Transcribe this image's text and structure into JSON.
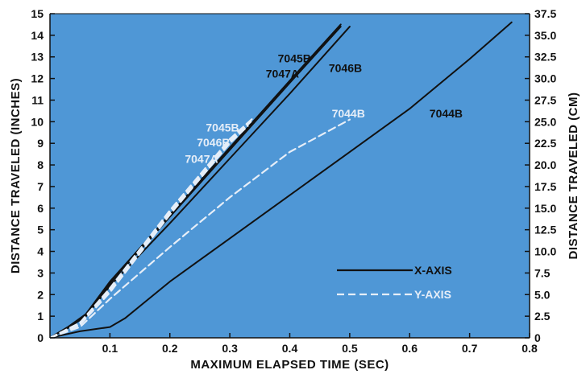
{
  "colors": {
    "plot_background": "#4f97d6",
    "x_axis_series": "#111111",
    "y_axis_series": "#e6eef8"
  },
  "chart_data": {
    "type": "line",
    "title": "",
    "xlabel": "MAXIMUM ELAPSED TIME (SEC)",
    "ylabel": "DISTANCE TRAVELED (INCHES)",
    "y2label": "DISTANCE TRAVELED (CM)",
    "xlim": [
      0,
      0.8
    ],
    "ylim": [
      0,
      15
    ],
    "y2lim": [
      0,
      37.5
    ],
    "x_ticks": [
      "0.1",
      "0.2",
      "0.3",
      "0.4",
      "0.5",
      "0.6",
      "0.7",
      "0.8"
    ],
    "y_ticks": [
      "0",
      "1",
      "2",
      "3",
      "4",
      "5",
      "6",
      "7",
      "8",
      "9",
      "10",
      "11",
      "12",
      "13",
      "14",
      "15"
    ],
    "y2_ticks": [
      "0",
      "2.5",
      "5.0",
      "7.5",
      "10.0",
      "12.5",
      "15.0",
      "17.5",
      "20.0",
      "22.5",
      "25.0",
      "27.5",
      "30.0",
      "32.5",
      "35.0",
      "37.5"
    ],
    "grid": false,
    "legend": {
      "placement": "lower-right",
      "entries": [
        {
          "label": "X-AXIS",
          "style": "solid"
        },
        {
          "label": "Y-AXIS",
          "style": "dashed"
        }
      ]
    },
    "series": [
      {
        "label": "7045B",
        "axis_group": "X-AXIS",
        "style": "solid",
        "x": [
          0,
          0.03,
          0.06,
          0.1,
          0.2,
          0.3,
          0.4,
          0.485
        ],
        "y": [
          0,
          0.5,
          1.1,
          2.6,
          5.7,
          8.8,
          11.9,
          14.5
        ]
      },
      {
        "label": "7046B",
        "axis_group": "X-AXIS",
        "style": "solid",
        "x": [
          0,
          0.03,
          0.06,
          0.1,
          0.2,
          0.3,
          0.4,
          0.5
        ],
        "y": [
          0,
          0.5,
          1.0,
          2.4,
          5.3,
          8.3,
          11.3,
          14.4
        ]
      },
      {
        "label": "7047A",
        "axis_group": "X-AXIS",
        "style": "solid",
        "x": [
          0,
          0.03,
          0.06,
          0.1,
          0.2,
          0.3,
          0.4,
          0.485
        ],
        "y": [
          0,
          0.45,
          1.0,
          2.5,
          5.6,
          8.7,
          11.8,
          14.4
        ]
      },
      {
        "label": "7044B",
        "axis_group": "X-AXIS",
        "style": "solid",
        "x": [
          0,
          0.05,
          0.1,
          0.125,
          0.2,
          0.3,
          0.4,
          0.5,
          0.6,
          0.7,
          0.77
        ],
        "y": [
          0,
          0.3,
          0.5,
          0.9,
          2.6,
          4.6,
          6.6,
          8.6,
          10.6,
          12.9,
          14.6
        ]
      },
      {
        "label": "7045B",
        "axis_group": "Y-AXIS",
        "style": "dashed",
        "x": [
          0,
          0.05,
          0.1,
          0.2,
          0.3,
          0.34
        ],
        "y": [
          0,
          0.7,
          2.3,
          5.9,
          9.2,
          10.2
        ]
      },
      {
        "label": "7046B",
        "axis_group": "Y-AXIS",
        "style": "dashed",
        "x": [
          0,
          0.05,
          0.1,
          0.2,
          0.3,
          0.335
        ],
        "y": [
          0,
          0.65,
          2.2,
          5.8,
          9.1,
          10.0
        ]
      },
      {
        "label": "7047A",
        "axis_group": "Y-AXIS",
        "style": "dashed",
        "x": [
          0,
          0.05,
          0.1,
          0.2,
          0.3,
          0.33
        ],
        "y": [
          0,
          0.6,
          2.1,
          5.7,
          9.0,
          9.8
        ]
      },
      {
        "label": "7044B",
        "axis_group": "Y-AXIS",
        "style": "dashed",
        "x": [
          0,
          0.05,
          0.1,
          0.2,
          0.3,
          0.4,
          0.5
        ],
        "y": [
          0,
          0.5,
          1.8,
          4.2,
          6.5,
          8.6,
          10.1
        ]
      }
    ],
    "annotations": [
      {
        "text": "7045B",
        "x": 0.38,
        "y": 12.75,
        "color_group": "X-AXIS"
      },
      {
        "text": "7047A",
        "x": 0.36,
        "y": 12.05,
        "color_group": "X-AXIS"
      },
      {
        "text": "7046B",
        "x": 0.465,
        "y": 12.3,
        "color_group": "X-AXIS"
      },
      {
        "text": "7044B",
        "x": 0.633,
        "y": 10.2,
        "color_group": "X-AXIS"
      },
      {
        "text": "7045B",
        "x": 0.26,
        "y": 9.55,
        "color_group": "Y-AXIS"
      },
      {
        "text": "7046B",
        "x": 0.245,
        "y": 8.85,
        "color_group": "Y-AXIS"
      },
      {
        "text": "7047A",
        "x": 0.225,
        "y": 8.1,
        "color_group": "Y-AXIS"
      },
      {
        "text": "7044B",
        "x": 0.47,
        "y": 10.2,
        "color_group": "Y-AXIS"
      }
    ]
  }
}
